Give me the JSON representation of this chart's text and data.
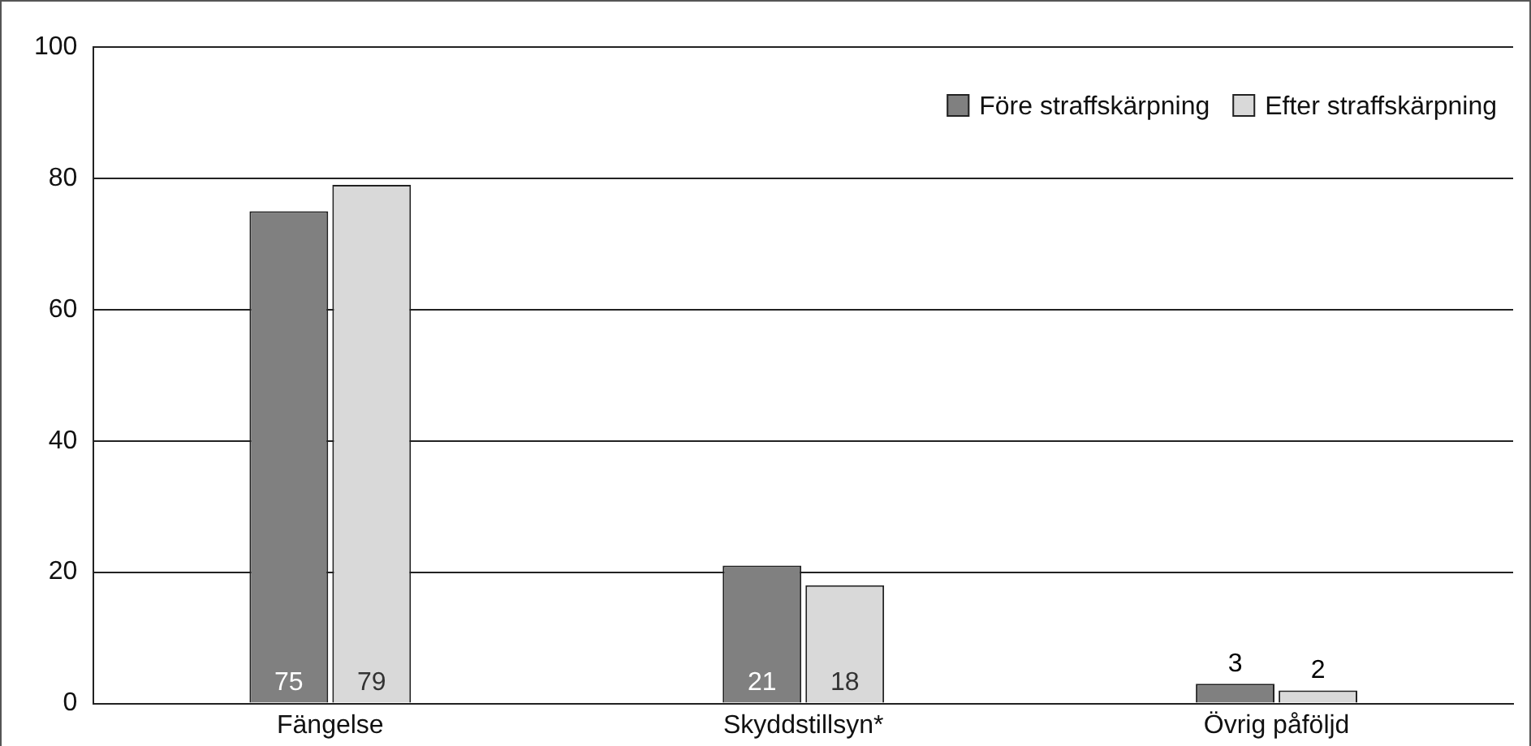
{
  "chart_data": {
    "type": "bar",
    "categories": [
      "Fängelse",
      "Skyddstillsyn*",
      "Övrig påföljd"
    ],
    "series": [
      {
        "name": "Före straffskärpning",
        "color": "#808080",
        "values": [
          75,
          21,
          3
        ]
      },
      {
        "name": "Efter straffskärpning",
        "color": "#d9d9d9",
        "values": [
          79,
          18,
          2
        ]
      }
    ],
    "ylim": [
      0,
      100
    ],
    "yticks": [
      0,
      20,
      40,
      60,
      80,
      100
    ],
    "grid": "y",
    "legend": "top right",
    "data_labels": true
  }
}
